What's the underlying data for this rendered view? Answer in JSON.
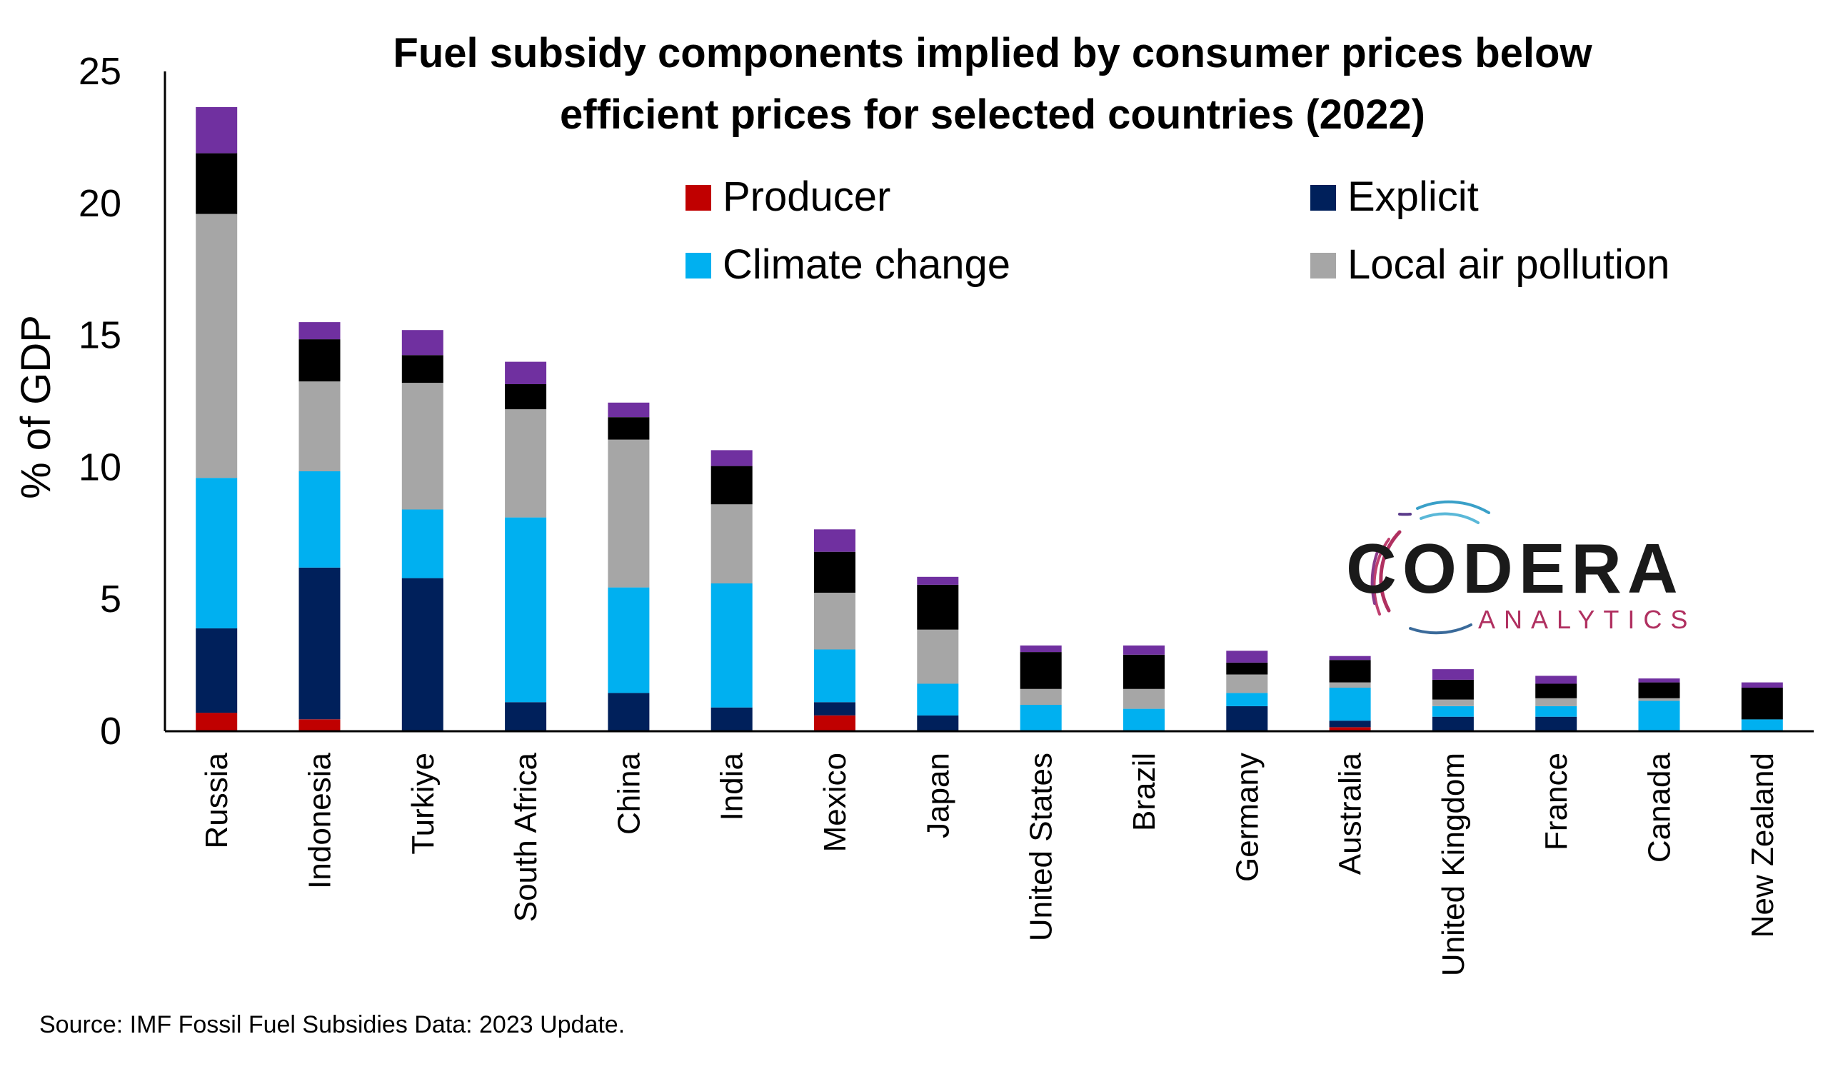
{
  "chart_data": {
    "type": "bar",
    "stacked": true,
    "title_lines": [
      "Fuel subsidy components implied by consumer prices below",
      "efficient prices for selected countries (2022)"
    ],
    "ylabel": "% of GDP",
    "ylim": [
      0,
      25
    ],
    "yticks": [
      "0",
      "5",
      "10",
      "15",
      "20",
      "25"
    ],
    "categories": [
      "Russia",
      "Indonesia",
      "Turkiye",
      "South Africa",
      "China",
      "India",
      "Mexico",
      "Japan",
      "United States",
      "Brazil",
      "Germany",
      "Australia",
      "United Kingdom",
      "France",
      "Canada",
      "New Zealand"
    ],
    "series": [
      {
        "name": "Producer",
        "color": "#c00000",
        "values": [
          0.7,
          0.45,
          0,
          0,
          0,
          0,
          0.6,
          0,
          0,
          0,
          0,
          0.15,
          0,
          0,
          0,
          0
        ]
      },
      {
        "name": "Explicit",
        "color": "#00205b",
        "values": [
          3.2,
          5.75,
          5.8,
          1.1,
          1.45,
          0.9,
          0.5,
          0.6,
          0,
          0,
          0.95,
          0.25,
          0.55,
          0.55,
          0,
          0
        ]
      },
      {
        "name": "Climate change",
        "color": "#00b0f0",
        "values": [
          5.7,
          3.65,
          2.6,
          7.0,
          4.0,
          4.7,
          2.0,
          1.2,
          1.0,
          0.85,
          0.5,
          1.25,
          0.4,
          0.4,
          1.15,
          0.45
        ]
      },
      {
        "name": "Local air pollution",
        "color": "#a6a6a6",
        "values": [
          10.0,
          3.4,
          4.8,
          4.1,
          5.6,
          3.0,
          2.15,
          2.05,
          0.6,
          0.75,
          0.7,
          0.2,
          0.25,
          0.3,
          0.1,
          0
        ]
      },
      {
        "name": "",
        "color": "#000000",
        "values": [
          2.3,
          1.6,
          1.05,
          0.95,
          0.85,
          1.45,
          1.55,
          1.7,
          1.4,
          1.3,
          0.45,
          0.85,
          0.75,
          0.55,
          0.6,
          1.2
        ]
      },
      {
        "name": "",
        "color": "#7030a0",
        "values": [
          1.75,
          0.65,
          0.95,
          0.85,
          0.55,
          0.6,
          0.85,
          0.3,
          0.25,
          0.35,
          0.45,
          0.15,
          0.4,
          0.3,
          0.15,
          0.2
        ]
      }
    ],
    "legend": {
      "placement": "top-right",
      "entries": [
        {
          "label": "Producer",
          "color": "#c00000"
        },
        {
          "label": "Explicit",
          "color": "#00205b"
        },
        {
          "label": "Climate change",
          "color": "#00b0f0"
        },
        {
          "label": "Local air pollution",
          "color": "#a6a6a6"
        }
      ]
    },
    "grid": false
  },
  "source": "Source: IMF Fossil Fuel Subsidies Data: 2023 Update.",
  "logo": {
    "name": "CODERA",
    "sub": "ANALYTICS"
  }
}
